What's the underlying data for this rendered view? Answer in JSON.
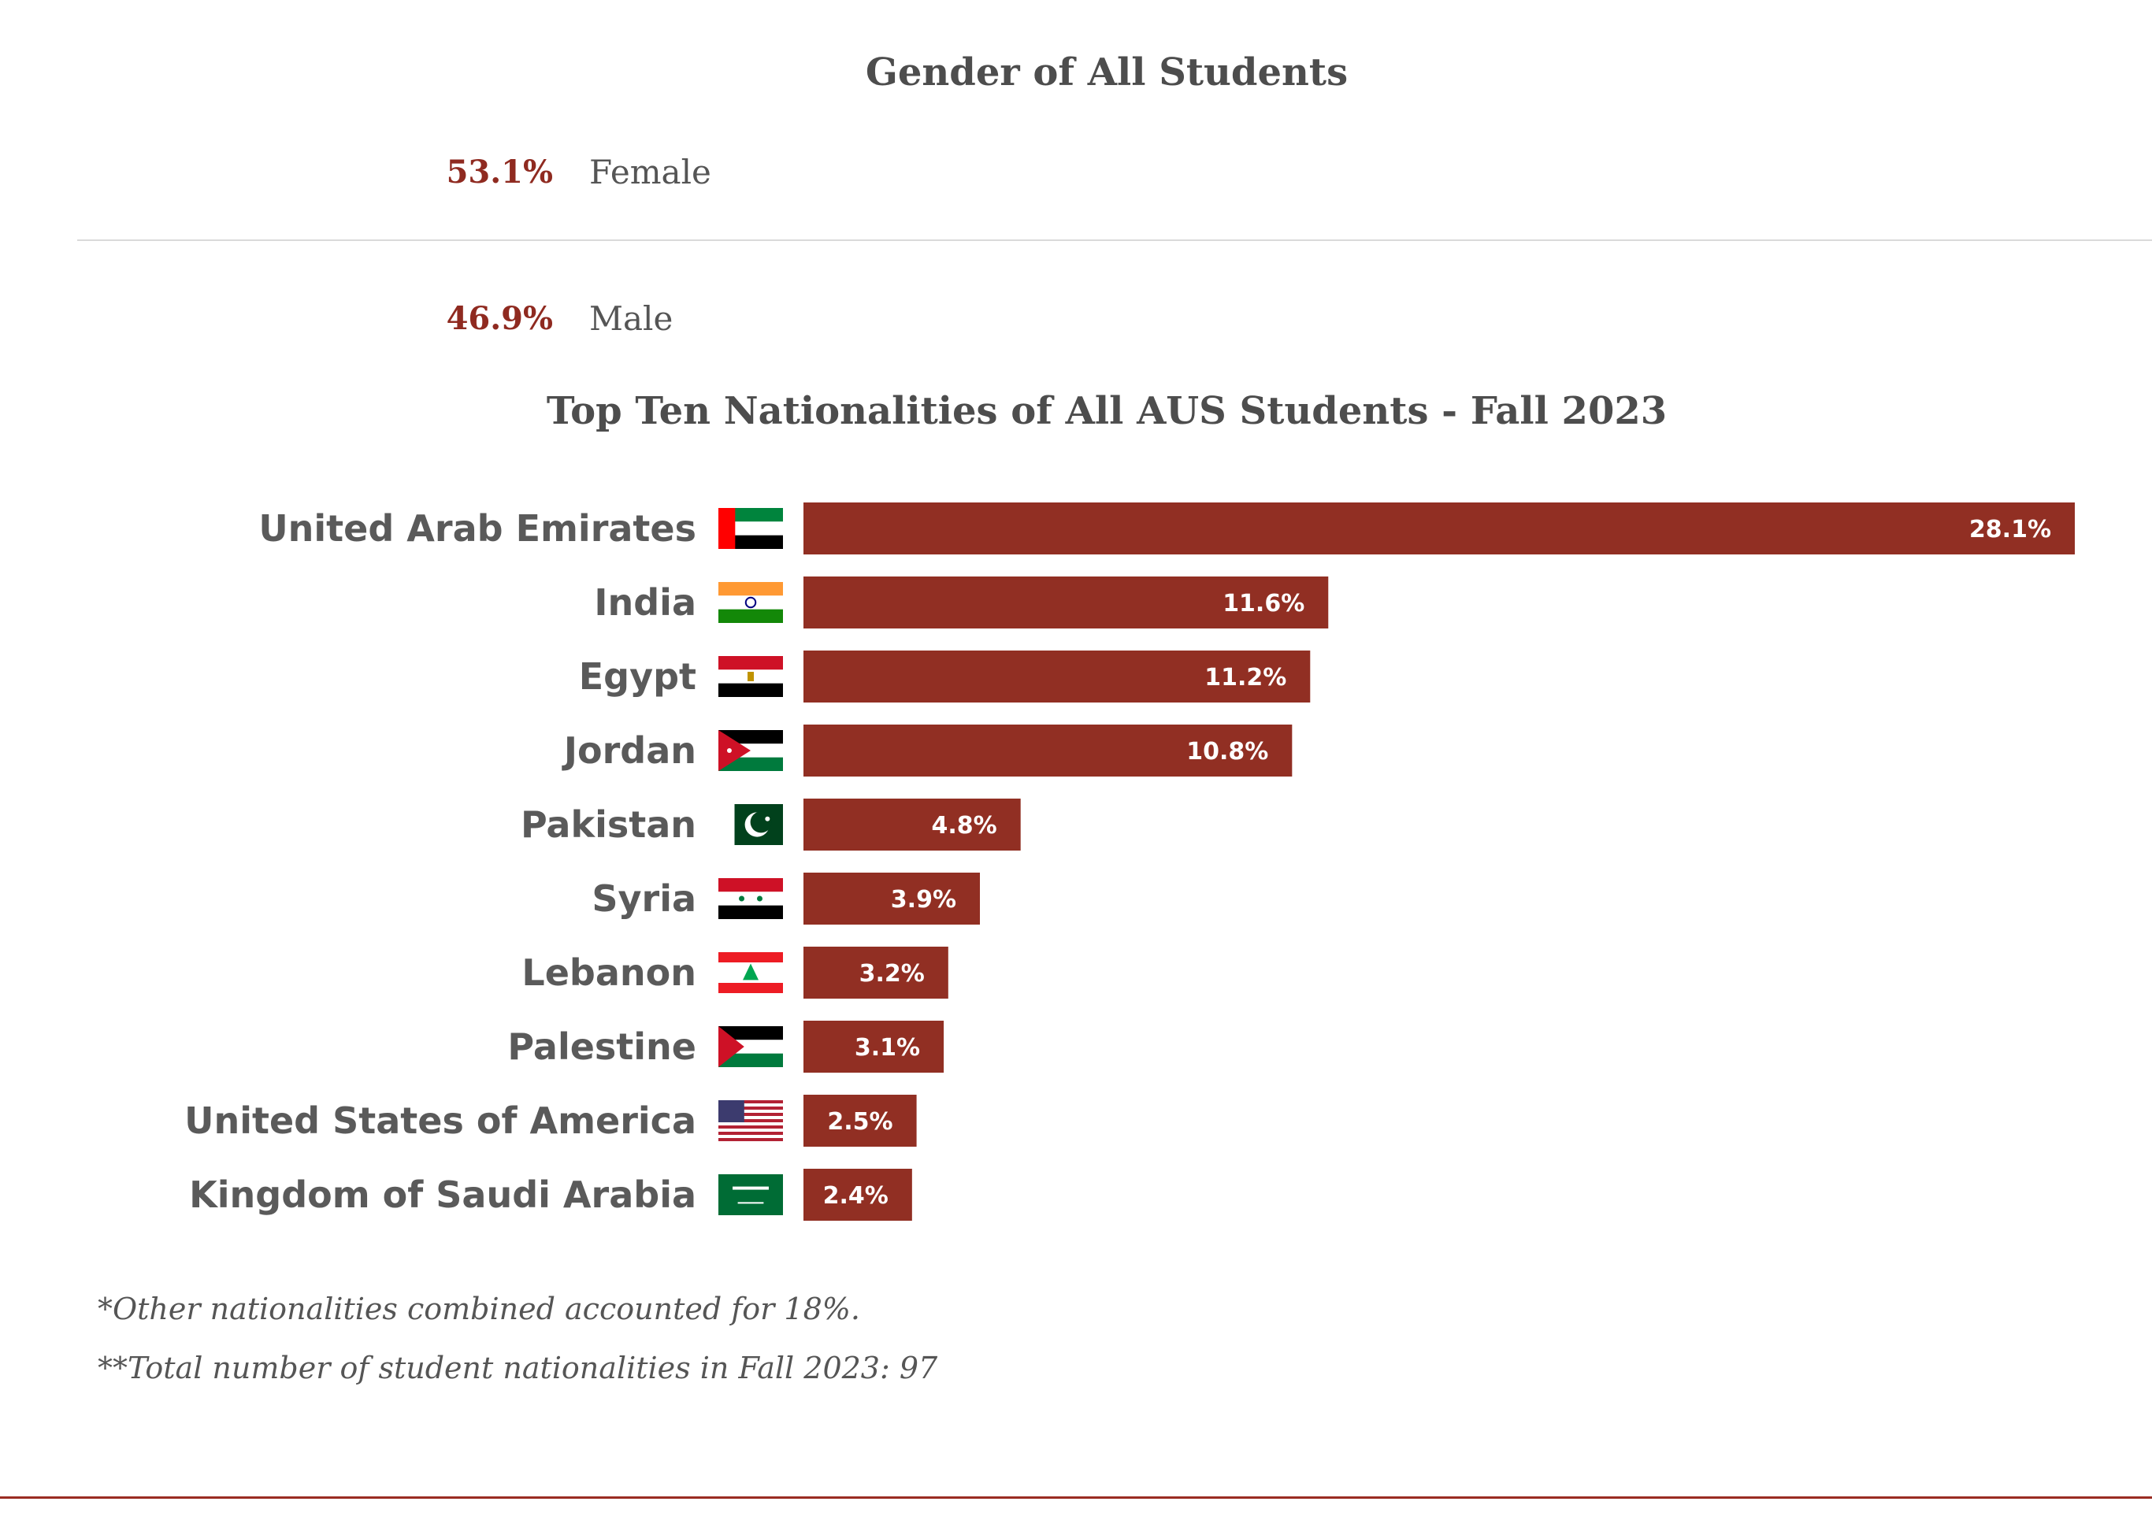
{
  "gender": {
    "title": "Gender of All Students",
    "rows": [
      {
        "pct": "53.1%",
        "label": "Female"
      },
      {
        "pct": "46.9%",
        "label": "Male"
      }
    ]
  },
  "chart_data": {
    "type": "bar",
    "orientation": "horizontal",
    "title": "Top Ten Nationalities of All AUS Students - Fall 2023",
    "xlabel": "",
    "ylabel": "",
    "grid": false,
    "xlim": [
      0,
      28.1
    ],
    "categories": [
      "United Arab Emirates",
      "India",
      "Egypt",
      "Jordan",
      "Pakistan",
      "Syria",
      "Lebanon",
      "Palestine",
      "United States of America",
      "Kingdom of Saudi Arabia"
    ],
    "values": [
      28.1,
      11.6,
      11.2,
      10.8,
      4.8,
      3.9,
      3.2,
      3.1,
      2.5,
      2.4
    ],
    "data_labels": [
      "28.1%",
      "11.6%",
      "11.2%",
      "10.8%",
      "4.8%",
      "3.9%",
      "3.2%",
      "3.1%",
      "2.5%",
      "2.4%"
    ],
    "flags": [
      "uae-flag-icon",
      "india-flag-icon",
      "egypt-flag-icon",
      "jordan-flag-icon",
      "pakistan-flag-icon",
      "syria-flag-icon",
      "lebanon-flag-icon",
      "palestine-flag-icon",
      "usa-flag-icon",
      "saudi-flag-icon"
    ]
  },
  "notes": {
    "other": "*Other nationalities combined accounted for 18%.",
    "total": "**Total number of student nationalities in Fall 2023: 97"
  },
  "colors": {
    "bar": "#912f23",
    "accent_text": "#8f2a20",
    "bottom_rule": "#9a2c22"
  }
}
